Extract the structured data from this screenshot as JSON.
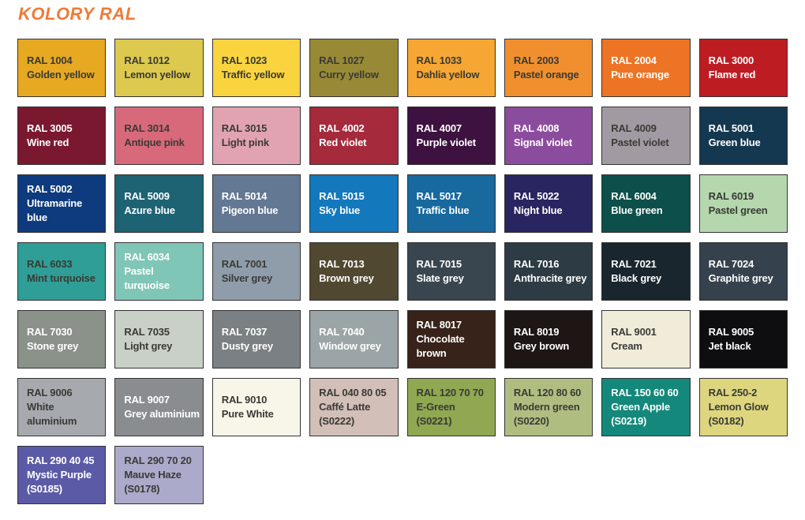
{
  "page": {
    "title": "KOLORY RAL",
    "title_color": "#ED7B39",
    "background": "#FFFFFF",
    "border_color": "#333333"
  },
  "text_colors": {
    "dark": "#3A3A35",
    "light": "#FFFFFF"
  },
  "swatches": [
    {
      "code": "RAL 1004",
      "name": "Golden yellow",
      "suffix": "",
      "bg": "#E7A922",
      "text": "dark"
    },
    {
      "code": "RAL 1012",
      "name": "Lemon yellow",
      "suffix": "",
      "bg": "#DCC94E",
      "text": "dark"
    },
    {
      "code": "RAL 1023",
      "name": "Traffic yellow",
      "suffix": "",
      "bg": "#F9D43E",
      "text": "dark"
    },
    {
      "code": "RAL 1027",
      "name": "Curry yellow",
      "suffix": "",
      "bg": "#988936",
      "text": "dark"
    },
    {
      "code": "RAL 1033",
      "name": "Dahlia yellow",
      "suffix": "",
      "bg": "#F6A733",
      "text": "dark"
    },
    {
      "code": "RAL 2003",
      "name": "Pastel orange",
      "suffix": "",
      "bg": "#F18F2E",
      "text": "dark"
    },
    {
      "code": "RAL 2004",
      "name": "Pure orange",
      "suffix": "",
      "bg": "#EE7425",
      "text": "light"
    },
    {
      "code": "RAL 3000",
      "name": "Flame red",
      "suffix": "",
      "bg": "#BE1C23",
      "text": "light"
    },
    {
      "code": "RAL 3005",
      "name": "Wine red",
      "suffix": "",
      "bg": "#7A1830",
      "text": "light"
    },
    {
      "code": "RAL 3014",
      "name": "Antique pink",
      "suffix": "",
      "bg": "#D8697B",
      "text": "dark"
    },
    {
      "code": "RAL 3015",
      "name": "Light pink",
      "suffix": "",
      "bg": "#E1A3B2",
      "text": "dark"
    },
    {
      "code": "RAL 4002",
      "name": "Red violet",
      "suffix": "",
      "bg": "#A52A3C",
      "text": "light"
    },
    {
      "code": "RAL 4007",
      "name": "Purple violet",
      "suffix": "",
      "bg": "#3D1240",
      "text": "light"
    },
    {
      "code": "RAL 4008",
      "name": "Signal violet",
      "suffix": "",
      "bg": "#8C4C9E",
      "text": "light"
    },
    {
      "code": "RAL 4009",
      "name": "Pastel violet",
      "suffix": "",
      "bg": "#A29AA2",
      "text": "dark"
    },
    {
      "code": "RAL 5001",
      "name": "Green blue",
      "suffix": "",
      "bg": "#14384F",
      "text": "light"
    },
    {
      "code": "RAL 5002",
      "name": "Ultramarine blue",
      "suffix": "",
      "bg": "#0E3B7D",
      "text": "light"
    },
    {
      "code": "RAL 5009",
      "name": "Azure blue",
      "suffix": "",
      "bg": "#1E6374",
      "text": "light"
    },
    {
      "code": "RAL 5014",
      "name": "Pigeon blue",
      "suffix": "",
      "bg": "#637893",
      "text": "light"
    },
    {
      "code": "RAL 5015",
      "name": "Sky blue",
      "suffix": "",
      "bg": "#1478BC",
      "text": "light"
    },
    {
      "code": "RAL 5017",
      "name": "Traffic blue",
      "suffix": "",
      "bg": "#17699E",
      "text": "light"
    },
    {
      "code": "RAL 5022",
      "name": "Night blue",
      "suffix": "",
      "bg": "#292560",
      "text": "light"
    },
    {
      "code": "RAL 6004",
      "name": "Blue green",
      "suffix": "",
      "bg": "#0D4F4B",
      "text": "light"
    },
    {
      "code": "RAL 6019",
      "name": "Pastel green",
      "suffix": "",
      "bg": "#B4D7AE",
      "text": "dark"
    },
    {
      "code": "RAL 6033",
      "name": "Mint turquoise",
      "suffix": "",
      "bg": "#2E9E96",
      "text": "dark"
    },
    {
      "code": "RAL 6034",
      "name": "Pastel turquoise",
      "suffix": "",
      "bg": "#80C6B6",
      "text": "light"
    },
    {
      "code": "RAL 7001",
      "name": "Silver grey",
      "suffix": "",
      "bg": "#8F9DAA",
      "text": "dark"
    },
    {
      "code": "RAL 7013",
      "name": "Brown grey",
      "suffix": "",
      "bg": "#514831",
      "text": "light"
    },
    {
      "code": "RAL 7015",
      "name": "Slate grey",
      "suffix": "",
      "bg": "#39464F",
      "text": "light"
    },
    {
      "code": "RAL 7016",
      "name": "Anthracite grey",
      "suffix": "",
      "bg": "#2C3B44",
      "text": "light"
    },
    {
      "code": "RAL 7021",
      "name": "Black grey",
      "suffix": "",
      "bg": "#19262E",
      "text": "light"
    },
    {
      "code": "RAL 7024",
      "name": "Graphite grey",
      "suffix": "",
      "bg": "#35424D",
      "text": "light"
    },
    {
      "code": "RAL 7030",
      "name": "Stone grey",
      "suffix": "",
      "bg": "#8B9289",
      "text": "light"
    },
    {
      "code": "RAL 7035",
      "name": "Light grey",
      "suffix": "",
      "bg": "#C8D0C7",
      "text": "dark"
    },
    {
      "code": "RAL 7037",
      "name": "Dusty grey",
      "suffix": "",
      "bg": "#7A8084",
      "text": "light"
    },
    {
      "code": "RAL 7040",
      "name": "Window grey",
      "suffix": "",
      "bg": "#9BA5A8",
      "text": "light"
    },
    {
      "code": "RAL 8017",
      "name": "Chocolate brown",
      "suffix": "",
      "bg": "#38231B",
      "text": "light"
    },
    {
      "code": "RAL 8019",
      "name": "Grey brown",
      "suffix": "",
      "bg": "#1E1515",
      "text": "light"
    },
    {
      "code": "RAL 9001",
      "name": "Cream",
      "suffix": "",
      "bg": "#F0ECD9",
      "text": "dark"
    },
    {
      "code": "RAL 9005",
      "name": "Jet black",
      "suffix": "",
      "bg": "#0E0D10",
      "text": "light"
    },
    {
      "code": "RAL 9006",
      "name": "White aluminium",
      "suffix": "",
      "bg": "#A6A9AE",
      "text": "dark"
    },
    {
      "code": "RAL 9007",
      "name": "Grey aluminium",
      "suffix": "",
      "bg": "#8A8D90",
      "text": "light"
    },
    {
      "code": "RAL 9010",
      "name": "Pure White",
      "suffix": "",
      "bg": "#F8F6E9",
      "text": "dark"
    },
    {
      "code": "RAL 040 80 05",
      "name": "Caffé Latte",
      "suffix": "(S0222)",
      "bg": "#D2BFB8",
      "text": "dark"
    },
    {
      "code": "RAL 120 70 70",
      "name": "E-Green",
      "suffix": "(S0221)",
      "bg": "#8FA851",
      "text": "dark"
    },
    {
      "code": "RAL 120 80 60",
      "name": "Modern green",
      "suffix": "(S0220)",
      "bg": "#AFBE80",
      "text": "dark"
    },
    {
      "code": "RAL 150 60 60",
      "name": "Green Apple",
      "suffix": "(S0219)",
      "bg": "#13887B",
      "text": "light"
    },
    {
      "code": "RAL 250-2",
      "name": "Lemon Glow",
      "suffix": "(S0182)",
      "bg": "#DED67F",
      "text": "dark"
    },
    {
      "code": "RAL 290 40 45",
      "name": "Mystic Purple",
      "suffix": "(S0185)",
      "bg": "#5B5AA6",
      "text": "light"
    },
    {
      "code": "RAL 290 70 20",
      "name": "Mauve Haze",
      "suffix": "(S0178)",
      "bg": "#ACAACB",
      "text": "dark"
    }
  ]
}
